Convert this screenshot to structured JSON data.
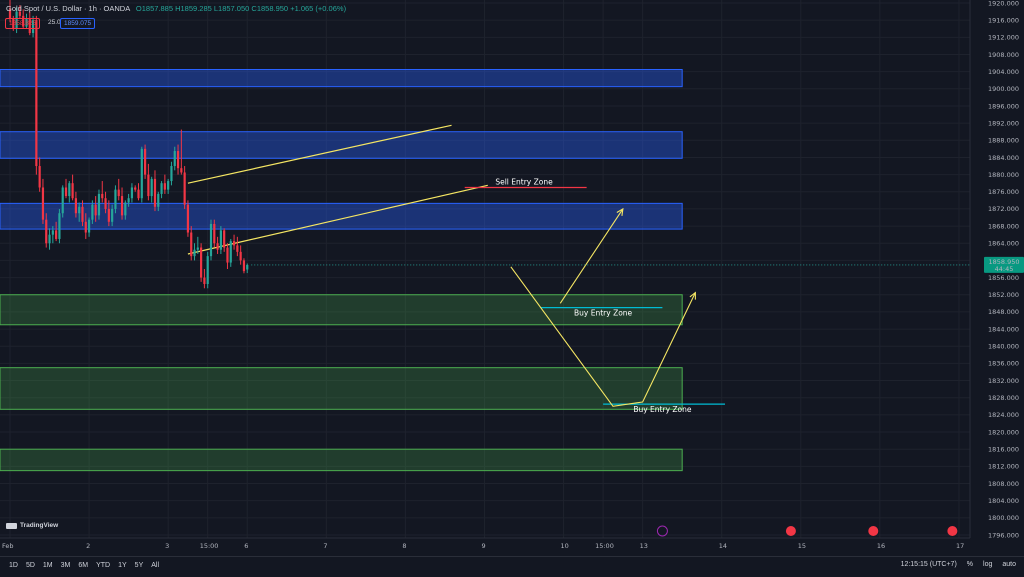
{
  "legend": {
    "symbol": "Gold Spot / U.S. Dollar · 1h · OANDA",
    "ohlc": "O1857.885 H1859.285 L1857.050 C1858.950 +1.065 (+0.06%)",
    "bid": "1858.825",
    "spread": "25.0",
    "ask": "1859.075"
  },
  "brand": "TradingView",
  "toolbar": {
    "timeframes": [
      "1D",
      "5D",
      "1M",
      "3M",
      "6M",
      "YTD",
      "1Y",
      "5Y",
      "All"
    ],
    "time": "12:15:15 (UTC+7)",
    "percent": "%",
    "log": "log",
    "auto": "auto"
  },
  "price_tag": {
    "price": "1858.950",
    "countdown": "44:45"
  },
  "colors": {
    "up": "#26a69a",
    "down": "#f23645",
    "supply": "#2962ff",
    "demand": "#4caf50",
    "trend": "#f5e663",
    "accent": "#00bcd4"
  },
  "chart_data": {
    "type": "candlestick",
    "y_ticks": [
      1920,
      1916,
      1912,
      1908,
      1904,
      1900,
      1896,
      1892,
      1888,
      1884,
      1880,
      1876,
      1872,
      1868,
      1864,
      1860,
      1856,
      1852,
      1848,
      1844,
      1840,
      1836,
      1832,
      1828,
      1824,
      1820,
      1816,
      1812,
      1808,
      1804,
      1800,
      1796
    ],
    "ylim": [
      1794.8,
      1921.5
    ],
    "x_ticks": [
      {
        "label": "Feb",
        "x": 0
      },
      {
        "label": "2",
        "x": 24
      },
      {
        "label": "3",
        "x": 48
      },
      {
        "label": "15:00",
        "x": 60
      },
      {
        "label": "6",
        "x": 72
      },
      {
        "label": "7",
        "x": 96
      },
      {
        "label": "8",
        "x": 120
      },
      {
        "label": "9",
        "x": 144
      },
      {
        "label": "10",
        "x": 168
      },
      {
        "label": "15:00",
        "x": 180
      },
      {
        "label": "13",
        "x": 192
      },
      {
        "label": "14",
        "x": 216
      },
      {
        "label": "15",
        "x": 240
      },
      {
        "label": "16",
        "x": 264
      },
      {
        "label": "17",
        "x": 288
      }
    ],
    "candles": [
      [
        1918.5,
        1921.0,
        1915.5,
        1916.5
      ],
      [
        1916.5,
        1917.0,
        1913.5,
        1914.0
      ],
      [
        1914.0,
        1919.0,
        1913.0,
        1918.0
      ],
      [
        1918.0,
        1919.5,
        1916.5,
        1917.0
      ],
      [
        1917.0,
        1918.5,
        1914.0,
        1914.5
      ],
      [
        1914.5,
        1917.5,
        1914.0,
        1916.5
      ],
      [
        1916.5,
        1918.0,
        1912.5,
        1913.0
      ],
      [
        1913.0,
        1917.0,
        1912.0,
        1916.0
      ],
      [
        1916.0,
        1917.0,
        1880.0,
        1882.0
      ],
      [
        1882.0,
        1884.0,
        1876.0,
        1877.0
      ],
      [
        1877.0,
        1879.0,
        1868.5,
        1869.5
      ],
      [
        1869.5,
        1871.0,
        1863.0,
        1864.0
      ],
      [
        1864.0,
        1867.5,
        1862.5,
        1866.0
      ],
      [
        1866.0,
        1868.0,
        1864.0,
        1867.0
      ],
      [
        1867.0,
        1869.0,
        1864.5,
        1865.0
      ],
      [
        1865.0,
        1872.0,
        1864.0,
        1871.0
      ],
      [
        1871.0,
        1877.5,
        1870.0,
        1877.0
      ],
      [
        1877.0,
        1879.0,
        1874.5,
        1875.0
      ],
      [
        1875.0,
        1878.5,
        1873.5,
        1878.0
      ],
      [
        1878.0,
        1880.0,
        1874.0,
        1874.5
      ],
      [
        1874.5,
        1876.0,
        1870.0,
        1871.0
      ],
      [
        1871.0,
        1873.5,
        1869.0,
        1872.5
      ],
      [
        1872.5,
        1874.0,
        1868.0,
        1869.0
      ],
      [
        1869.0,
        1871.0,
        1865.0,
        1866.5
      ],
      [
        1866.5,
        1870.0,
        1865.5,
        1869.5
      ],
      [
        1869.5,
        1874.0,
        1868.5,
        1873.0
      ],
      [
        1873.0,
        1875.0,
        1869.0,
        1870.5
      ],
      [
        1870.5,
        1876.5,
        1869.5,
        1875.5
      ],
      [
        1875.5,
        1878.5,
        1873.5,
        1874.5
      ],
      [
        1874.5,
        1876.0,
        1871.0,
        1872.0
      ],
      [
        1872.0,
        1874.0,
        1868.0,
        1869.0
      ],
      [
        1869.0,
        1873.0,
        1868.0,
        1872.0
      ],
      [
        1872.0,
        1877.5,
        1871.0,
        1876.5
      ],
      [
        1876.5,
        1879.0,
        1874.0,
        1875.0
      ],
      [
        1875.0,
        1877.0,
        1869.5,
        1870.5
      ],
      [
        1870.5,
        1874.0,
        1869.5,
        1873.5
      ],
      [
        1873.5,
        1875.5,
        1872.5,
        1874.5
      ],
      [
        1874.5,
        1878.0,
        1873.5,
        1877.0
      ],
      [
        1877.0,
        1877.5,
        1876.0,
        1876.5
      ],
      [
        1876.5,
        1878.0,
        1874.0,
        1874.5
      ],
      [
        1874.5,
        1886.5,
        1873.5,
        1886.0
      ],
      [
        1886.0,
        1887.0,
        1879.0,
        1880.0
      ],
      [
        1880.0,
        1882.5,
        1874.0,
        1875.0
      ],
      [
        1875.0,
        1879.5,
        1873.5,
        1879.0
      ],
      [
        1879.0,
        1881.0,
        1871.5,
        1872.5
      ],
      [
        1872.5,
        1876.0,
        1871.5,
        1875.5
      ],
      [
        1875.5,
        1878.5,
        1874.5,
        1878.0
      ],
      [
        1878.0,
        1880.0,
        1875.5,
        1876.5
      ],
      [
        1876.5,
        1879.0,
        1875.5,
        1878.5
      ],
      [
        1878.5,
        1883.0,
        1877.5,
        1882.0
      ],
      [
        1882.0,
        1886.5,
        1881.0,
        1885.5
      ],
      [
        1885.5,
        1887.0,
        1880.0,
        1881.5
      ],
      [
        1881.5,
        1890.5,
        1880.0,
        1880.5
      ],
      [
        1880.5,
        1882.0,
        1872.0,
        1873.0
      ],
      [
        1873.0,
        1874.0,
        1865.5,
        1866.5
      ],
      [
        1866.5,
        1868.0,
        1860.0,
        1861.0
      ],
      [
        1861.0,
        1864.0,
        1860.0,
        1862.5
      ],
      [
        1862.5,
        1865.5,
        1861.5,
        1863.0
      ],
      [
        1863.0,
        1864.0,
        1855.0,
        1856.0
      ],
      [
        1856.0,
        1858.0,
        1853.5,
        1854.5
      ],
      [
        1854.5,
        1862.0,
        1853.5,
        1861.0
      ],
      [
        1861.0,
        1869.5,
        1860.0,
        1868.5
      ],
      [
        1868.5,
        1869.5,
        1863.0,
        1864.0
      ],
      [
        1864.0,
        1865.5,
        1861.5,
        1862.5
      ],
      [
        1862.5,
        1868.0,
        1861.5,
        1867.0
      ],
      [
        1867.0,
        1867.5,
        1862.0,
        1863.0
      ],
      [
        1863.0,
        1864.0,
        1858.0,
        1859.5
      ],
      [
        1859.5,
        1865.0,
        1858.5,
        1864.5
      ],
      [
        1864.5,
        1866.0,
        1862.5,
        1863.5
      ],
      [
        1863.5,
        1865.5,
        1861.0,
        1862.0
      ],
      [
        1862.0,
        1863.5,
        1859.0,
        1860.0
      ],
      [
        1860.0,
        1860.5,
        1857.0,
        1857.5
      ],
      [
        1857.885,
        1859.285,
        1857.05,
        1858.95
      ]
    ],
    "zones": [
      {
        "kind": "supply",
        "y0": 1900.5,
        "y1": 1904.5,
        "x1": 204
      },
      {
        "kind": "supply",
        "y0": 1883.8,
        "y1": 1890.0,
        "x1": 204
      },
      {
        "kind": "supply",
        "y0": 1867.3,
        "y1": 1873.3,
        "x1": 204
      },
      {
        "kind": "demand",
        "y0": 1845.0,
        "y1": 1852.0,
        "x1": 204
      },
      {
        "kind": "demand",
        "y0": 1825.3,
        "y1": 1835.0,
        "x1": 204
      },
      {
        "kind": "demand",
        "y0": 1811.0,
        "y1": 1816.0,
        "x1": 204
      }
    ],
    "channel": [
      {
        "x0": 54,
        "y0": 1878.0,
        "x1": 134,
        "y1": 1891.5
      },
      {
        "x0": 54,
        "y0": 1861.5,
        "x1": 145,
        "y1": 1877.5
      }
    ],
    "levels": [
      {
        "label": "Sell Entry Zone",
        "color": "#f23645",
        "x0": 138,
        "x1": 175,
        "y": 1877.0,
        "label_x": 156
      },
      {
        "label": "Buy Entry Zone",
        "color": "#00bcd4",
        "x0": 161,
        "x1": 198,
        "y": 1849.0,
        "label_x": 180
      },
      {
        "label": "Buy Entry Zone",
        "color": "#00bcd4",
        "x0": 180,
        "x1": 217,
        "y": 1826.5,
        "label_x": 198
      }
    ],
    "projection": [
      [
        152,
        1858.5
      ],
      [
        183,
        1826.0
      ],
      [
        192,
        1827.0
      ],
      [
        208,
        1852.5
      ]
    ],
    "projection2": [
      [
        167,
        1850.0
      ],
      [
        186,
        1872.0
      ]
    ]
  }
}
